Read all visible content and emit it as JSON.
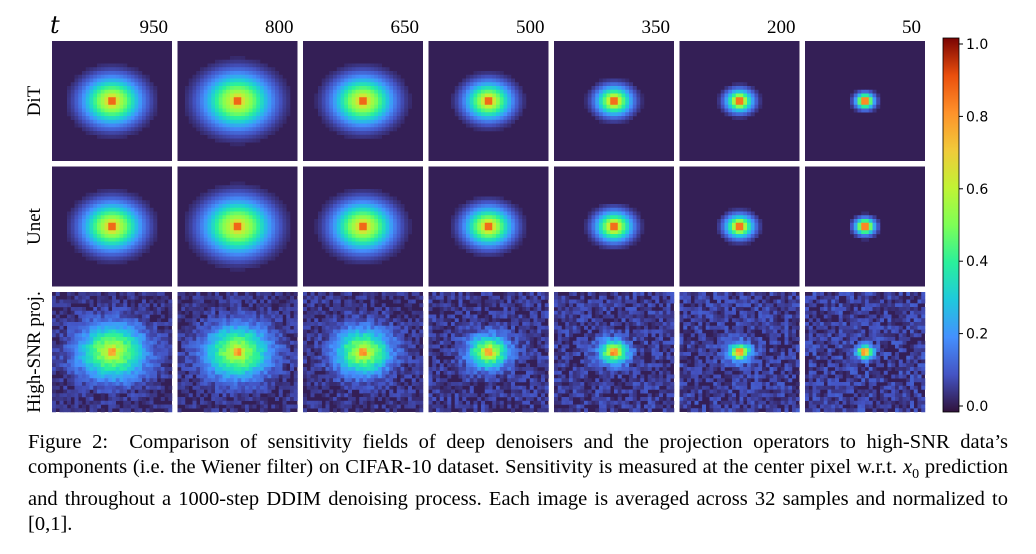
{
  "figure": {
    "t_symbol": "t",
    "timesteps": [
      "950",
      "800",
      "650",
      "500",
      "350",
      "200",
      "50"
    ],
    "rows": [
      {
        "label": "DiT",
        "spread": [
          1.0,
          1.15,
          1.02,
          0.8,
          0.62,
          0.48,
          0.34
        ],
        "noise": 0.0
      },
      {
        "label": "Unet",
        "spread": [
          1.0,
          1.15,
          1.02,
          0.82,
          0.64,
          0.5,
          0.36
        ],
        "noise": 0.0
      },
      {
        "label": "High-SNR proj.",
        "spread": [
          1.15,
          1.1,
          0.95,
          0.7,
          0.52,
          0.4,
          0.3
        ],
        "noise": 1.0
      }
    ],
    "colorbar": {
      "ticks": [
        "1.0",
        "0.8",
        "0.6",
        "0.4",
        "0.2",
        "0.0"
      ],
      "min": 0.0,
      "max": 1.0,
      "colormap": "turbo"
    }
  },
  "caption": {
    "label": "Figure 2:",
    "text_before_math": "Comparison of sensitivity fields of deep denoisers and the projection operators to high-SNR data’s components (i.e. the Wiener filter) on CIFAR-10 dataset. Sensitivity is measured at the center pixel w.r.t.",
    "math": "x",
    "math_sub": "0",
    "text_after_math": "prediction and throughout a 1000-step DDIM denoising process. Each image is averaged across 32 samples and normalized to [0,1]."
  }
}
